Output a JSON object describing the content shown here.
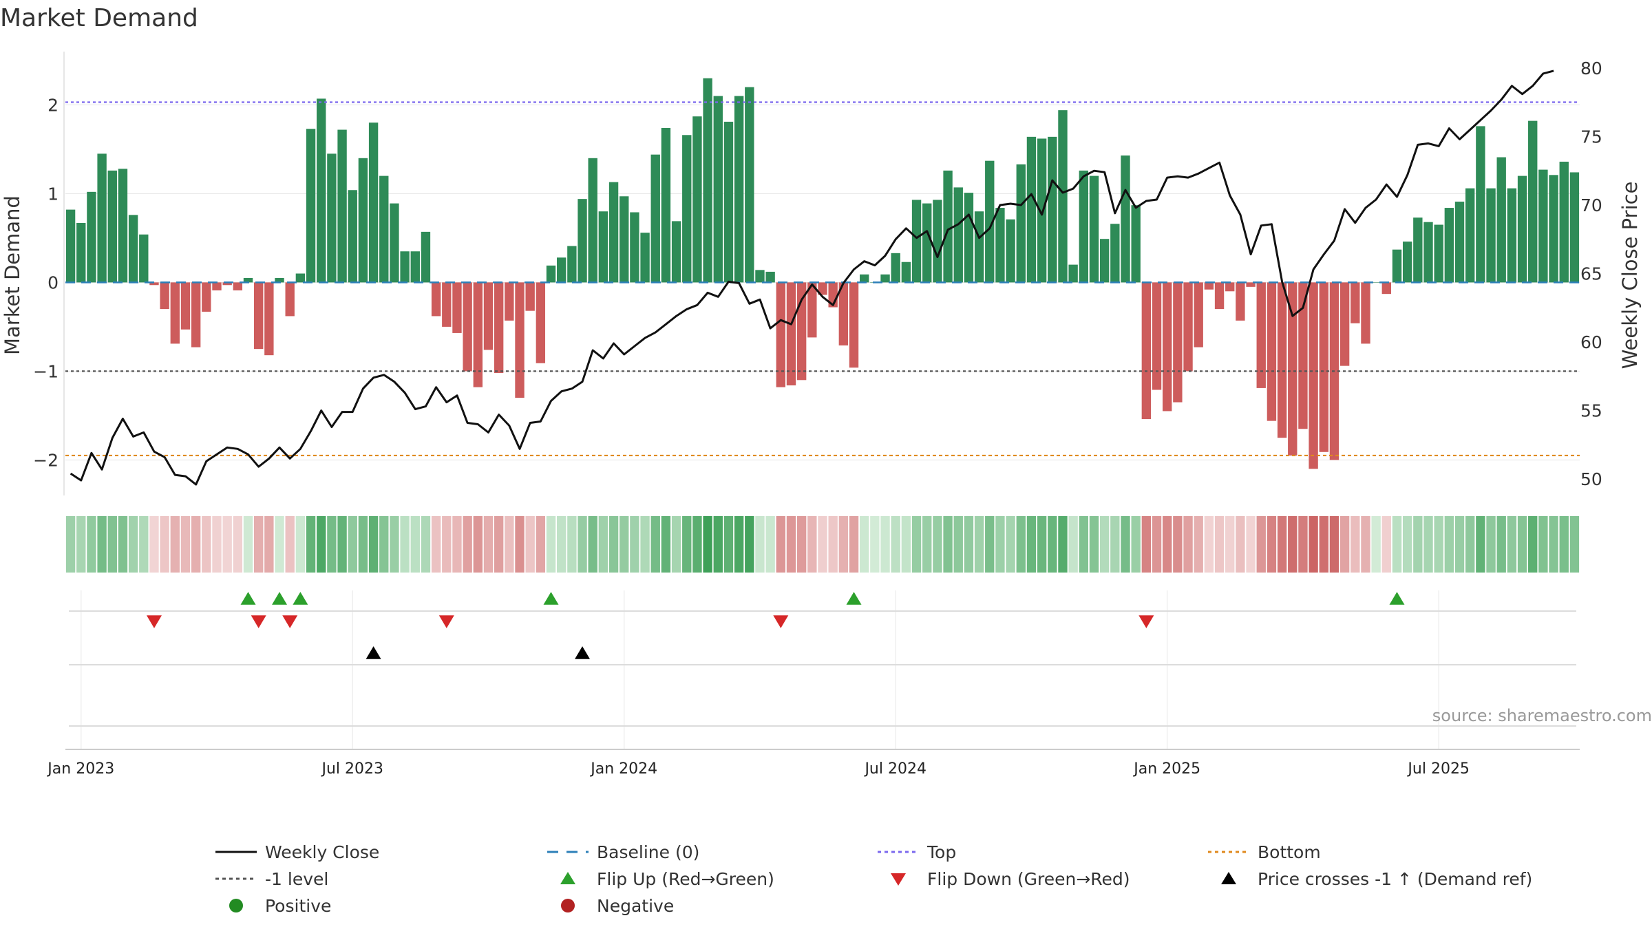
{
  "chart_data": {
    "type": "bar",
    "title": "Market Demand",
    "ylabel_left": "Market Demand",
    "ylabel_right": "Weekly Close Price",
    "ylim_left": [
      -2.4,
      2.6
    ],
    "ylim_right": [
      48.8,
      81.2
    ],
    "yticks_left": [
      {
        "v": 2,
        "label": "2"
      },
      {
        "v": 1,
        "label": "1"
      },
      {
        "v": 0,
        "label": "0"
      },
      {
        "v": -1,
        "label": "−1"
      },
      {
        "v": -2,
        "label": "−2"
      }
    ],
    "yticks_right": [
      {
        "v": 80,
        "label": "80"
      },
      {
        "v": 75,
        "label": "75"
      },
      {
        "v": 70,
        "label": "70"
      },
      {
        "v": 65,
        "label": "65"
      },
      {
        "v": 60,
        "label": "60"
      },
      {
        "v": 55,
        "label": "55"
      },
      {
        "v": 50,
        "label": "50"
      }
    ],
    "xticks": [
      {
        "week": 1.5,
        "label": "Jan 2023"
      },
      {
        "week": 27.5,
        "label": "Jul 2023"
      },
      {
        "week": 53.5,
        "label": "Jan 2024"
      },
      {
        "week": 79.5,
        "label": "Jul 2024"
      },
      {
        "week": 105.5,
        "label": "Jan 2025"
      },
      {
        "week": 131.5,
        "label": "Jul 2025"
      }
    ],
    "levels": {
      "top": 2.03,
      "minus_one": -1.0,
      "bottom": -1.95,
      "baseline": 0
    },
    "demand": [
      0.82,
      0.67,
      1.02,
      1.45,
      1.26,
      1.28,
      0.76,
      0.54,
      -0.03,
      -0.3,
      -0.69,
      -0.53,
      -0.73,
      -0.33,
      -0.09,
      -0.03,
      -0.09,
      0.05,
      -0.75,
      -0.82,
      0.05,
      -0.38,
      0.1,
      1.73,
      2.07,
      1.45,
      1.72,
      1.04,
      1.4,
      1.8,
      1.2,
      0.89,
      0.35,
      0.35,
      0.57,
      -0.38,
      -0.5,
      -0.57,
      -1.0,
      -1.18,
      -0.76,
      -1.02,
      -0.43,
      -1.3,
      -0.32,
      -0.91,
      0.19,
      0.28,
      0.41,
      0.94,
      1.4,
      0.8,
      1.13,
      0.97,
      0.79,
      0.56,
      1.44,
      1.74,
      0.69,
      1.66,
      1.87,
      2.3,
      2.1,
      1.81,
      2.1,
      2.2,
      0.14,
      0.12,
      -1.18,
      -1.16,
      -1.1,
      -0.62,
      -0.14,
      -0.28,
      -0.71,
      -0.96,
      0.09,
      0.0,
      0.09,
      0.33,
      0.23,
      0.93,
      0.89,
      0.93,
      1.26,
      1.07,
      1.01,
      0.8,
      1.37,
      0.84,
      0.71,
      1.33,
      1.64,
      1.62,
      1.64,
      1.94,
      0.2,
      1.26,
      1.2,
      0.49,
      0.66,
      1.43,
      0.87,
      -1.54,
      -1.21,
      -1.45,
      -1.35,
      -1.0,
      -0.73,
      -0.08,
      -0.3,
      -0.1,
      -0.43,
      -0.05,
      -1.19,
      -1.56,
      -1.75,
      -1.95,
      -1.65,
      -2.1,
      -1.91,
      -2.0,
      -0.94,
      -0.46,
      -0.69,
      0.0,
      -0.13,
      0.37,
      0.46,
      0.73,
      0.68,
      0.65,
      0.84,
      0.91,
      1.06,
      1.76,
      1.06,
      1.41,
      1.06,
      1.2,
      1.82,
      1.27,
      1.21,
      1.36,
      1.24
    ],
    "weekly_close": [
      50.4,
      49.9,
      51.9,
      50.7,
      53.0,
      54.4,
      53.1,
      53.4,
      52.0,
      51.6,
      50.3,
      50.2,
      49.6,
      51.3,
      51.8,
      52.3,
      52.2,
      51.8,
      50.9,
      51.5,
      52.3,
      51.5,
      52.2,
      53.5,
      55.0,
      53.8,
      54.9,
      54.9,
      56.6,
      57.4,
      57.6,
      57.1,
      56.3,
      55.1,
      55.3,
      56.7,
      55.6,
      56.1,
      54.1,
      54.0,
      53.4,
      54.7,
      53.9,
      52.2,
      54.1,
      54.2,
      55.7,
      56.4,
      56.6,
      57.1,
      59.4,
      58.8,
      59.9,
      59.1,
      59.7,
      60.3,
      60.7,
      61.3,
      61.9,
      62.4,
      62.7,
      63.6,
      63.3,
      64.4,
      64.3,
      62.8,
      63.1,
      61.0,
      61.6,
      61.3,
      63.1,
      64.2,
      63.3,
      62.7,
      64.3,
      65.3,
      65.9,
      65.6,
      66.3,
      67.5,
      68.3,
      67.6,
      68.1,
      66.2,
      68.2,
      68.6,
      69.3,
      67.6,
      68.3,
      70.0,
      70.1,
      70.0,
      70.8,
      69.3,
      71.8,
      70.9,
      71.2,
      72.1,
      72.5,
      72.4,
      69.4,
      71.1,
      69.8,
      70.3,
      70.4,
      72.0,
      72.1,
      72.0,
      72.3,
      72.7,
      73.1,
      70.7,
      69.3,
      66.4,
      68.5,
      68.6,
      64.4,
      61.9,
      62.5,
      65.3,
      66.4,
      67.4,
      69.7,
      68.7,
      69.8,
      70.4,
      71.5,
      70.6,
      72.2,
      74.4,
      74.5,
      74.3,
      75.6,
      74.8,
      75.5,
      76.2,
      76.9,
      77.7,
      78.7,
      78.1,
      78.7,
      79.6,
      79.8
    ],
    "flip_up_weeks": [
      17,
      20,
      22,
      46,
      75,
      127
    ],
    "flip_down_weeks": [
      8,
      18,
      21,
      36,
      68,
      103
    ],
    "price_cross_weeks": [
      29,
      49
    ],
    "source_note": "source: sharemaestro.com",
    "legend": [
      {
        "key": "weekly_close",
        "label": "Weekly Close",
        "symbol": "line",
        "color": "#111111"
      },
      {
        "key": "baseline",
        "label": "Baseline (0)",
        "symbol": "dash",
        "color": "#2c7fb8"
      },
      {
        "key": "top",
        "label": "Top",
        "symbol": "dot",
        "color": "#7b68ee"
      },
      {
        "key": "bottom",
        "label": "Bottom",
        "symbol": "dot",
        "color": "#e08a1e"
      },
      {
        "key": "minus_one",
        "label": "-1 level",
        "symbol": "dot",
        "color": "#555555"
      },
      {
        "key": "flip_up",
        "label": "Flip Up (Red→Green)",
        "symbol": "tri-up",
        "color": "#2ca02c"
      },
      {
        "key": "flip_down",
        "label": "Flip Down (Green→Red)",
        "symbol": "tri-down",
        "color": "#d62728"
      },
      {
        "key": "price_cross",
        "label": "Price crosses -1 ↑ (Demand ref)",
        "symbol": "tri-up",
        "color": "#000000"
      },
      {
        "key": "positive",
        "label": "Positive",
        "symbol": "circle",
        "color": "#228b22"
      },
      {
        "key": "negative",
        "label": "Negative",
        "symbol": "circle",
        "color": "#b22222"
      }
    ]
  },
  "colors": {
    "positive_bar": "#2e8b57",
    "negative_bar": "#cd5c5c",
    "price_line": "#111111",
    "grid": "#e6e6e6",
    "axis_text": "#333333"
  }
}
